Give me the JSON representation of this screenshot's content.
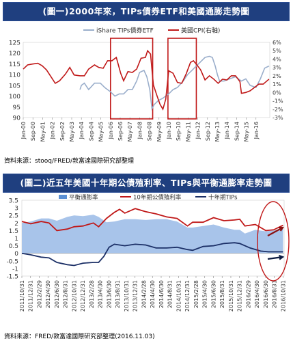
{
  "colors": {
    "title_bg": "#1f3f7f",
    "etf_line": "#9aaecb",
    "cpi_line": "#c01818",
    "highlight_box": "#c01818",
    "area_breakeven": "#a8c4ea",
    "yield_10y": "#c01818",
    "tips_10y": "#1b2f66",
    "arrow_red": "#8a1010",
    "arrow_dark": "#0b1a40"
  },
  "chart_data": [
    {
      "type": "line",
      "title": "(圖一)2000年來，TIPs債券ETF和美國通膨走勢圖",
      "source": "資料來源：stooq/FRED/敦富達國際研究部整理",
      "x_tick_labels": [
        "Jan-00",
        "Sep-00",
        "May-01",
        "Jan-02",
        "Sep-02",
        "May-03",
        "Jan-04",
        "Sep-04",
        "May-05",
        "Jan-06",
        "Sep-06",
        "May-07",
        "Jan-08",
        "Sep-08",
        "May-09",
        "Jan-10",
        "Sep-10",
        "May-11",
        "Jan-12",
        "Sep-12",
        "May-13",
        "Jan-14",
        "Sep-14",
        "May-15",
        "Jan-16"
      ],
      "y_left": {
        "ticks": [
          "90",
          "95",
          "100",
          "105",
          "110",
          "115",
          "120",
          "125"
        ],
        "lim": [
          90,
          125
        ]
      },
      "y_right": {
        "ticks": [
          "6%",
          "5%",
          "4%",
          "3%",
          "2%",
          "1%",
          "0%",
          "-1%",
          "-2%",
          "-3%"
        ],
        "lim": [
          -3,
          6
        ]
      },
      "legend": "top-center",
      "series": [
        {
          "name": "iShare TIPs債券ETF",
          "axis": "left",
          "x": [
            2003.9,
            2004.0,
            2004.2,
            2004.5,
            2004.9,
            2005.3,
            2005.6,
            2006.0,
            2006.3,
            2006.6,
            2006.9,
            2007.2,
            2007.5,
            2007.8,
            2008.0,
            2008.3,
            2008.5,
            2008.7,
            2008.85,
            2009.0,
            2009.3,
            2009.6,
            2010.0,
            2010.3,
            2010.6,
            2011.0,
            2011.3,
            2011.6,
            2011.9,
            2012.2,
            2012.5,
            2012.8,
            2013.0,
            2013.2,
            2013.35,
            2013.5,
            2013.8,
            2014.2,
            2014.6,
            2015.0,
            2015.3,
            2015.6,
            2016.0,
            2016.3,
            2016.6,
            2016.9
          ],
          "y": [
            103,
            105,
            106,
            103,
            106,
            106,
            104,
            102,
            100,
            101,
            101,
            103,
            103,
            107,
            111,
            112,
            109,
            103,
            94,
            96,
            98,
            99,
            101,
            103,
            104,
            107,
            110,
            112,
            114,
            116,
            118,
            118.5,
            118,
            114,
            110,
            107,
            107,
            108,
            109,
            107,
            108,
            105,
            104,
            108,
            113,
            114
          ]
        },
        {
          "name": "美國CPI(右軸)",
          "axis": "right",
          "x": [
            2000.0,
            2000.3,
            2000.6,
            2001.0,
            2001.3,
            2001.6,
            2001.9,
            2002.2,
            2002.5,
            2002.9,
            2003.2,
            2003.5,
            2003.9,
            2004.2,
            2004.5,
            2004.9,
            2005.2,
            2005.5,
            2005.8,
            2006.1,
            2006.4,
            2006.7,
            2006.9,
            2007.2,
            2007.5,
            2007.8,
            2008.1,
            2008.4,
            2008.55,
            2008.75,
            2008.95,
            2009.2,
            2009.4,
            2009.6,
            2009.8,
            2010.0,
            2010.3,
            2010.6,
            2010.9,
            2011.2,
            2011.5,
            2011.7,
            2011.9,
            2012.2,
            2012.5,
            2012.8,
            2013.1,
            2013.4,
            2013.7,
            2014.0,
            2014.3,
            2014.6,
            2014.9,
            2015.0,
            2015.3,
            2015.6,
            2015.9,
            2016.2,
            2016.5,
            2016.9
          ],
          "y": [
            2.8,
            3.3,
            3.4,
            3.5,
            3.2,
            2.7,
            1.9,
            1.1,
            1.4,
            2.2,
            3.0,
            2.1,
            2.0,
            2.0,
            2.8,
            3.3,
            3.0,
            2.9,
            3.8,
            3.8,
            4.2,
            2.3,
            1.4,
            2.5,
            2.4,
            2.8,
            4.1,
            4.2,
            5.0,
            4.6,
            0.9,
            -0.4,
            -1.4,
            -2.0,
            -0.8,
            2.6,
            2.3,
            1.2,
            1.1,
            2.2,
            3.6,
            3.8,
            3.4,
            2.7,
            1.5,
            2.0,
            1.6,
            1.1,
            1.6,
            1.5,
            2.0,
            2.0,
            1.3,
            -0.1,
            0.0,
            0.2,
            0.6,
            1.0,
            1.0,
            1.6
          ]
        }
      ],
      "highlight_ranges": [
        [
          2006.0,
          2008.9
        ],
        [
          2009.95,
          2011.9
        ]
      ]
    },
    {
      "type": "area",
      "title": "(圖二)近五年美國十年期公債殖利率、TIPs與平衡通膨率走勢圖",
      "source": "資料來源：FRED/敦富達國際研究部整理(2016.11.03)",
      "x_tick_labels": [
        "2011/10/31",
        "2011/12/31",
        "2012/2/29",
        "2012/4/30",
        "2012/6/30",
        "2012/8/31",
        "2012/10/31",
        "2012/12/31",
        "2013/2/28",
        "2013/4/30",
        "2013/6/30",
        "2013/8/31",
        "2013/10/31",
        "2013/12/31",
        "2014/2/28",
        "2014/4/30",
        "2014/6/30",
        "2014/8/31",
        "2014/10/31",
        "2014/12/31",
        "2015/2/28",
        "2015/4/30",
        "2015/6/30",
        "2015/8/31",
        "2015/10/31",
        "2015/12/31",
        "2016/2/29",
        "2016/4/30",
        "2016/6/30",
        "2016/8/31",
        "2016/10/31"
      ],
      "y_ticks": [
        "3.5",
        "3",
        "2.5",
        "2",
        "1.5",
        "1",
        "0.5",
        "0",
        "-0.5",
        "-1",
        "-1.5"
      ],
      "ylim": [
        -1.5,
        3.5
      ],
      "legend": "top",
      "series": [
        {
          "name": "平衡通膨率",
          "kind": "area",
          "x": [
            2011.83,
            2012.0,
            2012.2,
            2012.35,
            2012.5,
            2012.7,
            2012.83,
            2013.0,
            2013.2,
            2013.3,
            2013.45,
            2013.6,
            2013.8,
            2014.0,
            2014.2,
            2014.4,
            2014.6,
            2014.8,
            2014.9,
            2015.0,
            2015.1,
            2015.3,
            2015.5,
            2015.7,
            2015.9,
            2016.0,
            2016.1,
            2016.3,
            2016.5,
            2016.65,
            2016.83
          ],
          "y": [
            2.0,
            2.1,
            2.3,
            2.3,
            2.15,
            2.4,
            2.5,
            2.45,
            2.55,
            2.4,
            2.05,
            2.1,
            2.25,
            2.25,
            2.2,
            2.25,
            2.25,
            2.1,
            1.9,
            1.7,
            1.7,
            1.8,
            1.9,
            1.7,
            1.55,
            1.55,
            1.3,
            1.55,
            1.45,
            1.5,
            1.65
          ]
        },
        {
          "name": "10年期公債殖利率",
          "kind": "line",
          "x": [
            2011.83,
            2012.0,
            2012.2,
            2012.35,
            2012.5,
            2012.7,
            2012.83,
            2013.0,
            2013.2,
            2013.3,
            2013.45,
            2013.6,
            2013.7,
            2013.8,
            2014.0,
            2014.2,
            2014.4,
            2014.6,
            2014.8,
            2015.0,
            2015.1,
            2015.3,
            2015.5,
            2015.7,
            2015.9,
            2016.0,
            2016.1,
            2016.3,
            2016.5,
            2016.65,
            2016.83
          ],
          "y": [
            2.1,
            1.95,
            2.1,
            2.0,
            1.5,
            1.6,
            1.75,
            1.8,
            2.0,
            1.75,
            2.3,
            2.7,
            2.9,
            2.65,
            2.95,
            2.75,
            2.6,
            2.4,
            2.3,
            1.8,
            2.05,
            2.05,
            2.35,
            2.15,
            2.2,
            2.25,
            1.8,
            1.9,
            1.5,
            1.55,
            1.85
          ]
        },
        {
          "name": "十年期TIPs",
          "kind": "line",
          "x": [
            2011.83,
            2012.0,
            2012.2,
            2012.35,
            2012.5,
            2012.7,
            2012.83,
            2013.0,
            2013.2,
            2013.3,
            2013.4,
            2013.5,
            2013.6,
            2013.8,
            2014.0,
            2014.2,
            2014.4,
            2014.6,
            2014.8,
            2015.0,
            2015.1,
            2015.3,
            2015.5,
            2015.7,
            2015.9,
            2016.0,
            2016.2,
            2016.4,
            2016.55,
            2016.83
          ],
          "y": [
            0.0,
            -0.1,
            -0.25,
            -0.3,
            -0.6,
            -0.75,
            -0.8,
            -0.65,
            -0.6,
            -0.6,
            -0.2,
            0.4,
            0.6,
            0.5,
            0.6,
            0.55,
            0.35,
            0.35,
            0.4,
            0.25,
            0.2,
            0.45,
            0.5,
            0.65,
            0.7,
            0.65,
            0.35,
            0.15,
            0.1,
            0.1
          ]
        }
      ]
    }
  ]
}
